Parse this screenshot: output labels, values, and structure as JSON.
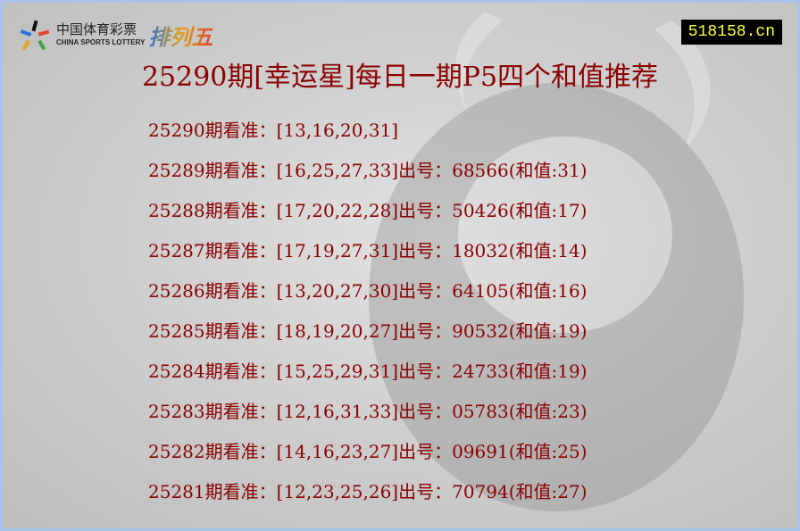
{
  "logo": {
    "cn": "中国体育彩票",
    "en": "CHINA SPORTS LOTTERY",
    "product": "排列五"
  },
  "site_badge": "518158.cn",
  "title": "25290期[幸运星]每日一期P5四个和值推荐",
  "colors": {
    "text": "#8b0000",
    "border": "#a9c1ea",
    "badge_bg": "#000000",
    "badge_text": "#ffff33"
  },
  "rows": [
    "25290期看准：[13,16,20,31]",
    "25289期看准：[16,25,27,33]出号：68566(和值:31)",
    "25288期看准：[17,20,22,28]出号：50426(和值:17)",
    "25287期看准：[17,19,27,31]出号：18032(和值:14)",
    "25286期看准：[13,20,27,30]出号：64105(和值:16)",
    "25285期看准：[18,19,20,27]出号：90532(和值:19)",
    "25284期看准：[15,25,29,31]出号：24733(和值:19)",
    "25283期看准：[12,16,31,33]出号：05783(和值:23)",
    "25282期看准：[14,16,23,27]出号：09691(和值:25)",
    "25281期看准：[12,23,25,26]出号：70794(和值:27)"
  ]
}
